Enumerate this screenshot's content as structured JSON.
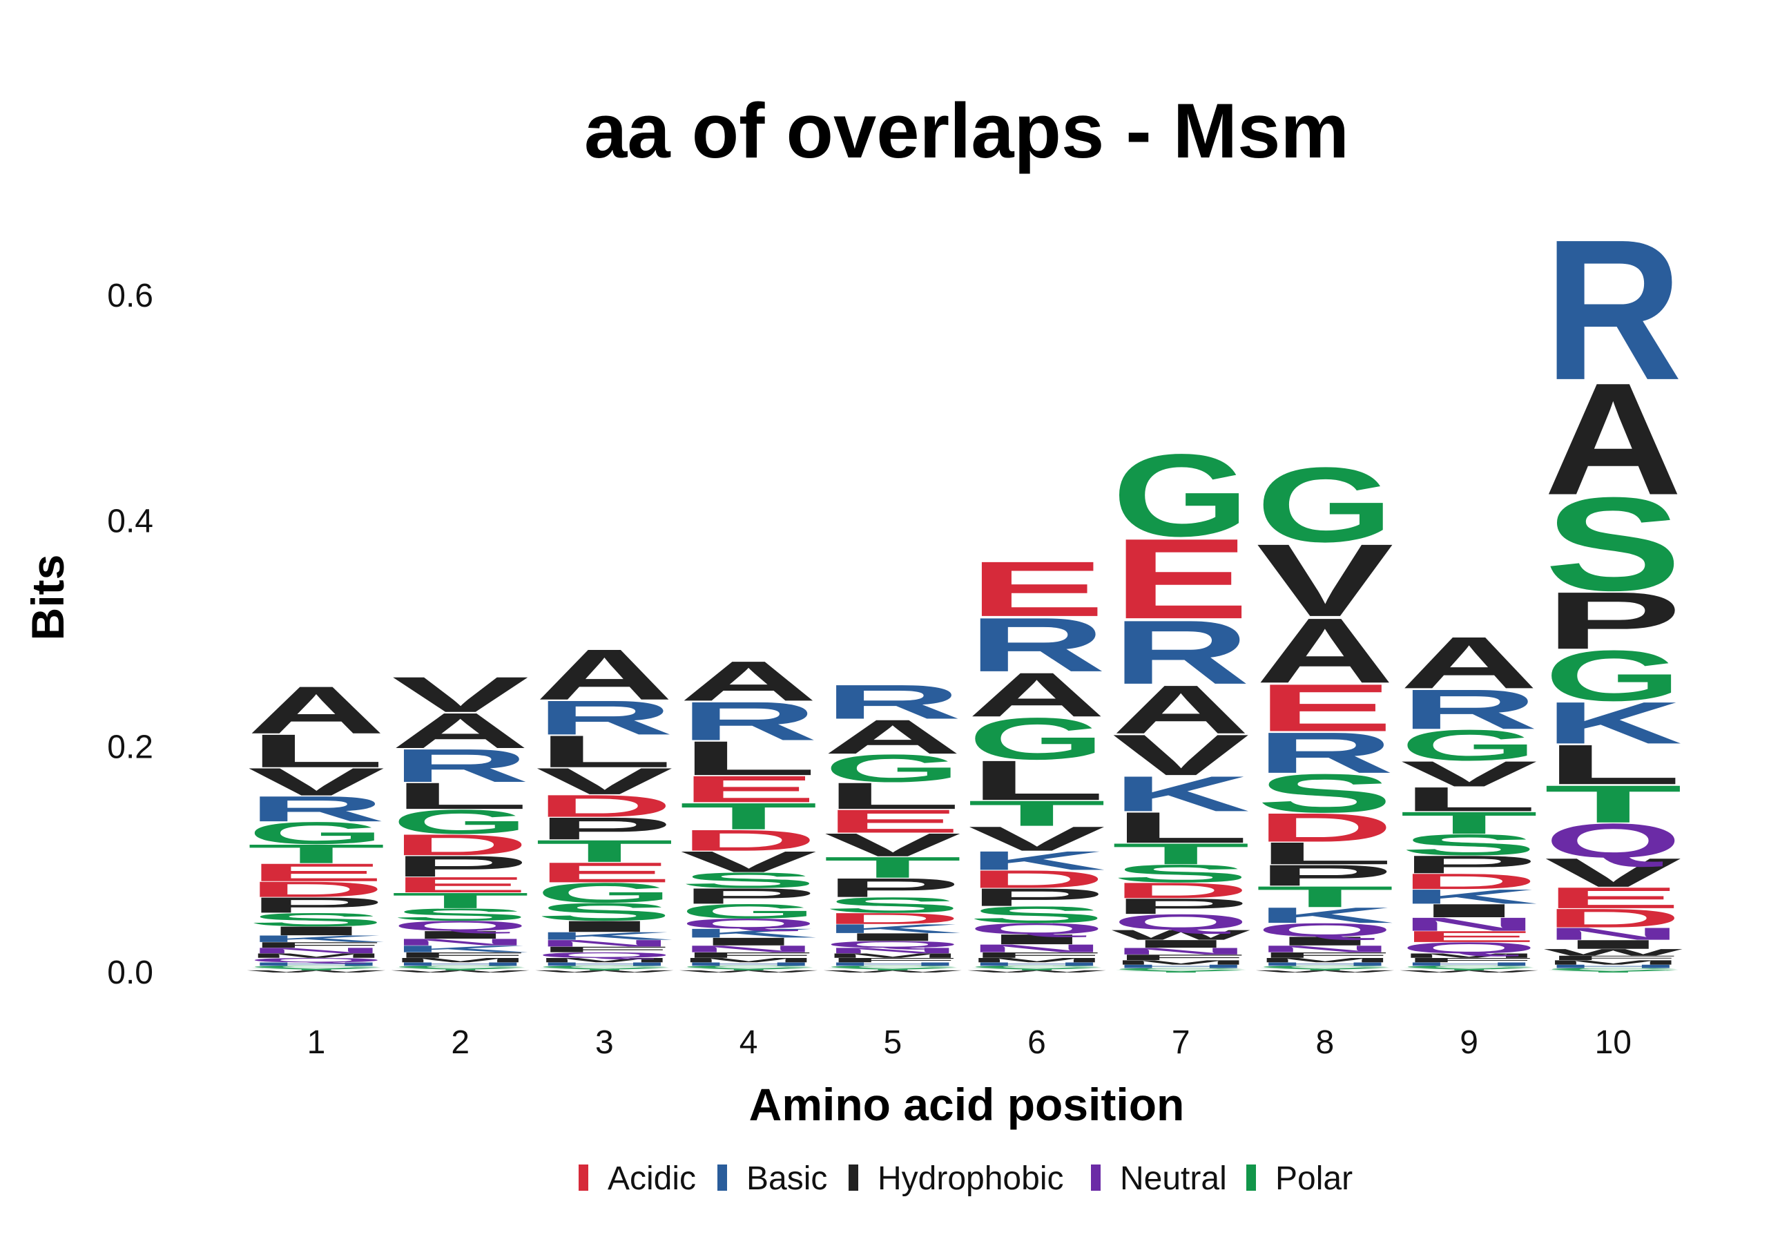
{
  "chart_data": {
    "type": "sequence-logo",
    "title": "aa of overlaps - Msm",
    "xlabel": "Amino acid position",
    "ylabel": "Bits",
    "ylim": [
      0,
      0.65
    ],
    "yticks": [
      "0.0",
      "0.2",
      "0.4",
      "0.6"
    ],
    "ytick_values": [
      0,
      0.2,
      0.4,
      0.6
    ],
    "positions": [
      "1",
      "2",
      "3",
      "4",
      "5",
      "6",
      "7",
      "8",
      "9",
      "10"
    ],
    "legend": [
      {
        "name": "Acidic",
        "color": "#d62a3a"
      },
      {
        "name": "Basic",
        "color": "#2a5d9b"
      },
      {
        "name": "Hydrophobic",
        "color": "#222222"
      },
      {
        "name": "Neutral",
        "color": "#6b2ba6"
      },
      {
        "name": "Polar",
        "color": "#12964a"
      }
    ],
    "class_colors": {
      "Acidic": "#d62a3a",
      "Basic": "#2a5d9b",
      "Hydrophobic": "#222222",
      "Neutral": "#6b2ba6",
      "Polar": "#12964a"
    },
    "residue_class": {
      "D": "Acidic",
      "E": "Acidic",
      "K": "Basic",
      "R": "Basic",
      "H": "Basic",
      "A": "Hydrophobic",
      "V": "Hydrophobic",
      "L": "Hydrophobic",
      "I": "Hydrophobic",
      "P": "Hydrophobic",
      "F": "Hydrophobic",
      "W": "Hydrophobic",
      "M": "Hydrophobic",
      "N": "Neutral",
      "Q": "Neutral",
      "G": "Polar",
      "S": "Polar",
      "T": "Polar",
      "Y": "Polar",
      "C": "Polar"
    },
    "stacks": [
      {
        "position": "1",
        "letters": [
          [
            "A",
            0.043
          ],
          [
            "L",
            0.03
          ],
          [
            "V",
            0.025
          ],
          [
            "R",
            0.023
          ],
          [
            "G",
            0.02
          ],
          [
            "T",
            0.017
          ],
          [
            "E",
            0.016
          ],
          [
            "P",
            0.014
          ],
          [
            "D",
            0.014
          ],
          [
            "S",
            0.012
          ],
          [
            "I",
            0.008
          ],
          [
            "K",
            0.006
          ],
          [
            "N",
            0.005
          ],
          [
            "F",
            0.005
          ],
          [
            "Q",
            0.004
          ],
          [
            "M",
            0.004
          ],
          [
            "H",
            0.003
          ],
          [
            "W",
            0.002
          ],
          [
            "Y",
            0.002
          ],
          [
            "C",
            0.002
          ]
        ]
      },
      {
        "position": "2",
        "letters": [
          [
            "A",
            0.032
          ],
          [
            "R",
            0.03
          ],
          [
            "V",
            0.032
          ],
          [
            "L",
            0.024
          ],
          [
            "G",
            0.022
          ],
          [
            "P",
            0.019
          ],
          [
            "D",
            0.019
          ],
          [
            "T",
            0.014
          ],
          [
            "E",
            0.014
          ],
          [
            "S",
            0.011
          ],
          [
            "Q",
            0.009
          ],
          [
            "I",
            0.007
          ],
          [
            "K",
            0.006
          ],
          [
            "N",
            0.006
          ],
          [
            "F",
            0.005
          ],
          [
            "M",
            0.004
          ],
          [
            "H",
            0.003
          ],
          [
            "W",
            0.002
          ],
          [
            "Y",
            0.002
          ],
          [
            "C",
            0.002
          ]
        ]
      },
      {
        "position": "3",
        "letters": [
          [
            "A",
            0.046
          ],
          [
            "L",
            0.029
          ],
          [
            "R",
            0.031
          ],
          [
            "V",
            0.024
          ],
          [
            "T",
            0.02
          ],
          [
            "P",
            0.02
          ],
          [
            "D",
            0.02
          ],
          [
            "G",
            0.018
          ],
          [
            "E",
            0.018
          ],
          [
            "S",
            0.016
          ],
          [
            "I",
            0.01
          ],
          [
            "K",
            0.007
          ],
          [
            "N",
            0.006
          ],
          [
            "Q",
            0.005
          ],
          [
            "F",
            0.005
          ],
          [
            "M",
            0.004
          ],
          [
            "H",
            0.003
          ],
          [
            "W",
            0.002
          ],
          [
            "Y",
            0.002
          ],
          [
            "C",
            0.002
          ]
        ]
      },
      {
        "position": "4",
        "letters": [
          [
            "A",
            0.036
          ],
          [
            "R",
            0.035
          ],
          [
            "L",
            0.031
          ],
          [
            "T",
            0.024
          ],
          [
            "E",
            0.024
          ],
          [
            "V",
            0.019
          ],
          [
            "D",
            0.019
          ],
          [
            "P",
            0.014
          ],
          [
            "S",
            0.014
          ],
          [
            "G",
            0.013
          ],
          [
            "Q",
            0.009
          ],
          [
            "K",
            0.008
          ],
          [
            "I",
            0.007
          ],
          [
            "N",
            0.006
          ],
          [
            "F",
            0.005
          ],
          [
            "M",
            0.004
          ],
          [
            "H",
            0.003
          ],
          [
            "W",
            0.002
          ],
          [
            "Y",
            0.002
          ],
          [
            "C",
            0.002
          ]
        ]
      },
      {
        "position": "5",
        "letters": [
          [
            "A",
            0.031
          ],
          [
            "R",
            0.031
          ],
          [
            "L",
            0.024
          ],
          [
            "G",
            0.025
          ],
          [
            "V",
            0.021
          ],
          [
            "E",
            0.021
          ],
          [
            "T",
            0.019
          ],
          [
            "P",
            0.017
          ],
          [
            "S",
            0.014
          ],
          [
            "D",
            0.01
          ],
          [
            "K",
            0.008
          ],
          [
            "I",
            0.007
          ],
          [
            "Q",
            0.006
          ],
          [
            "N",
            0.005
          ],
          [
            "F",
            0.004
          ],
          [
            "M",
            0.004
          ],
          [
            "H",
            0.003
          ],
          [
            "W",
            0.002
          ],
          [
            "Y",
            0.002
          ],
          [
            "C",
            0.002
          ]
        ]
      },
      {
        "position": "6",
        "letters": [
          [
            "E",
            0.05
          ],
          [
            "R",
            0.049
          ],
          [
            "A",
            0.04
          ],
          [
            "G",
            0.038
          ],
          [
            "L",
            0.036
          ],
          [
            "T",
            0.023
          ],
          [
            "V",
            0.022
          ],
          [
            "K",
            0.017
          ],
          [
            "S",
            0.015
          ],
          [
            "P",
            0.016
          ],
          [
            "D",
            0.016
          ],
          [
            "Q",
            0.01
          ],
          [
            "I",
            0.009
          ],
          [
            "N",
            0.007
          ],
          [
            "F",
            0.005
          ],
          [
            "M",
            0.004
          ],
          [
            "H",
            0.003
          ],
          [
            "W",
            0.002
          ],
          [
            "Y",
            0.002
          ],
          [
            "C",
            0.002
          ]
        ]
      },
      {
        "position": "7",
        "letters": [
          [
            "G",
            0.075
          ],
          [
            "E",
            0.073
          ],
          [
            "R",
            0.058
          ],
          [
            "A",
            0.044
          ],
          [
            "V",
            0.037
          ],
          [
            "K",
            0.032
          ],
          [
            "L",
            0.028
          ],
          [
            "T",
            0.019
          ],
          [
            "S",
            0.016
          ],
          [
            "Q",
            0.014
          ],
          [
            "P",
            0.014
          ],
          [
            "D",
            0.014
          ],
          [
            "W",
            0.009
          ],
          [
            "I",
            0.007
          ],
          [
            "N",
            0.006
          ],
          [
            "F",
            0.005
          ],
          [
            "M",
            0.004
          ],
          [
            "H",
            0.003
          ],
          [
            "Y",
            0.002
          ],
          [
            "C",
            0.002
          ]
        ]
      },
      {
        "position": "8",
        "letters": [
          [
            "G",
            0.068
          ],
          [
            "A",
            0.059
          ],
          [
            "V",
            0.066
          ],
          [
            "E",
            0.043
          ],
          [
            "R",
            0.037
          ],
          [
            "S",
            0.035
          ],
          [
            "D",
            0.026
          ],
          [
            "L",
            0.02
          ],
          [
            "T",
            0.019
          ],
          [
            "P",
            0.019
          ],
          [
            "K",
            0.014
          ],
          [
            "Q",
            0.012
          ],
          [
            "I",
            0.008
          ],
          [
            "N",
            0.006
          ],
          [
            "F",
            0.005
          ],
          [
            "M",
            0.004
          ],
          [
            "H",
            0.003
          ],
          [
            "W",
            0.002
          ],
          [
            "Y",
            0.002
          ],
          [
            "C",
            0.002
          ]
        ]
      },
      {
        "position": "9",
        "letters": [
          [
            "A",
            0.047
          ],
          [
            "R",
            0.036
          ],
          [
            "G",
            0.028
          ],
          [
            "V",
            0.023
          ],
          [
            "L",
            0.022
          ],
          [
            "T",
            0.02
          ],
          [
            "S",
            0.019
          ],
          [
            "P",
            0.016
          ],
          [
            "D",
            0.014
          ],
          [
            "K",
            0.013
          ],
          [
            "N",
            0.012
          ],
          [
            "I",
            0.012
          ],
          [
            "Q",
            0.01
          ],
          [
            "E",
            0.01
          ],
          [
            "F",
            0.004
          ],
          [
            "M",
            0.004
          ],
          [
            "H",
            0.003
          ],
          [
            "W",
            0.002
          ],
          [
            "Y",
            0.002
          ],
          [
            "C",
            0.002
          ]
        ]
      },
      {
        "position": "10",
        "letters": [
          [
            "R",
            0.128
          ],
          [
            "A",
            0.102
          ],
          [
            "S",
            0.085
          ],
          [
            "P",
            0.052
          ],
          [
            "G",
            0.046
          ],
          [
            "K",
            0.038
          ],
          [
            "Q",
            0.031
          ],
          [
            "L",
            0.036
          ],
          [
            "T",
            0.034
          ],
          [
            "V",
            0.026
          ],
          [
            "E",
            0.019
          ],
          [
            "D",
            0.017
          ],
          [
            "N",
            0.011
          ],
          [
            "I",
            0.008
          ],
          [
            "W",
            0.006
          ],
          [
            "M",
            0.004
          ],
          [
            "F",
            0.004
          ],
          [
            "H",
            0.003
          ],
          [
            "Y",
            0.002
          ],
          [
            "C",
            0.002
          ]
        ]
      }
    ]
  }
}
